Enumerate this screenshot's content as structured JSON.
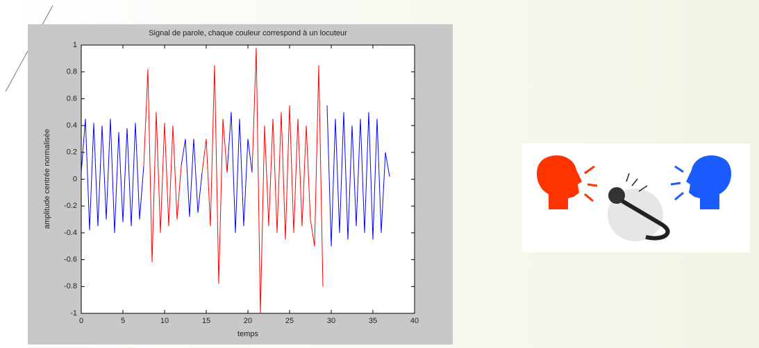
{
  "chart_data": {
    "type": "line",
    "title": "Signal de parole, chaque couleur correspond à un locuteur",
    "x_label": "temps",
    "y_label": "amplitude centrée normalisée",
    "x": [
      0,
      0.5,
      1,
      1.5,
      2,
      2.5,
      3,
      3.5,
      4,
      4.5,
      5,
      5.5,
      6,
      6.5,
      7,
      7.5,
      8,
      8.5,
      9,
      9.5,
      10,
      10.5,
      11,
      11.5,
      12,
      12.5,
      13,
      13.5,
      14,
      14.5,
      15,
      15.5,
      16,
      16.5,
      17,
      17.5,
      18,
      18.5,
      19,
      19.5,
      20,
      20.5,
      21,
      21.5,
      22,
      22.5,
      23,
      23.5,
      24,
      24.5,
      25,
      25.5,
      26,
      26.5,
      27,
      27.5,
      28,
      28.5,
      29,
      29.5,
      30,
      30.5,
      31,
      31.5,
      32,
      32.5,
      33,
      33.5,
      34,
      34.5,
      35,
      35.5,
      36,
      36.5,
      37
    ],
    "series": [
      {
        "color": "#0000ff",
        "values": [
          0.05,
          0.45,
          -0.38,
          0.42,
          -0.35,
          0.4,
          -0.3,
          0.45,
          -0.4,
          0.35,
          -0.32,
          0.38,
          -0.35,
          0.42,
          -0.3,
          0.1,
          null,
          null,
          null,
          null,
          null,
          null,
          null,
          null,
          0.1,
          0.3,
          -0.28,
          0.3,
          -0.25,
          0.05,
          null,
          null,
          null,
          null,
          null,
          0.05,
          0.5,
          -0.4,
          0.45,
          -0.35,
          0.3,
          0.05,
          null,
          null,
          null,
          null,
          null,
          null,
          null,
          null,
          null,
          null,
          null,
          null,
          null,
          null,
          null,
          null,
          null,
          0.55,
          -0.5,
          0.45,
          -0.4,
          0.5,
          -0.45,
          0.4,
          -0.35,
          0.45,
          -0.4,
          0.5,
          -0.45,
          0.45,
          -0.4,
          0.2,
          0.02
        ]
      },
      {
        "color": "#ff0000",
        "values": [
          null,
          null,
          null,
          null,
          null,
          null,
          null,
          null,
          null,
          null,
          null,
          null,
          null,
          null,
          null,
          0.1,
          0.82,
          -0.62,
          0.5,
          -0.4,
          0.42,
          -0.35,
          0.4,
          -0.3,
          0.1,
          null,
          null,
          null,
          null,
          0.05,
          0.3,
          -0.35,
          0.85,
          -0.78,
          0.45,
          0.05,
          null,
          null,
          null,
          null,
          null,
          0.05,
          0.98,
          -1,
          0.4,
          -0.35,
          0.45,
          -0.4,
          0.5,
          -0.45,
          0.55,
          -0.4,
          0.45,
          -0.35,
          0.4,
          -0.3,
          -0.5,
          0.85,
          -0.8,
          null,
          null,
          null,
          null,
          null,
          null,
          null,
          null,
          null,
          null,
          null,
          null,
          null,
          null,
          null,
          null
        ]
      }
    ],
    "xlim": [
      0,
      40
    ],
    "xticks": [
      0,
      5,
      10,
      15,
      20,
      25,
      30,
      35,
      40
    ],
    "ylim": [
      -1,
      1
    ],
    "yticks": [
      -1,
      -0.8,
      -0.6,
      -0.4,
      -0.2,
      0,
      0.2,
      0.4,
      0.6,
      0.8,
      1
    ],
    "grid": false
  }
}
